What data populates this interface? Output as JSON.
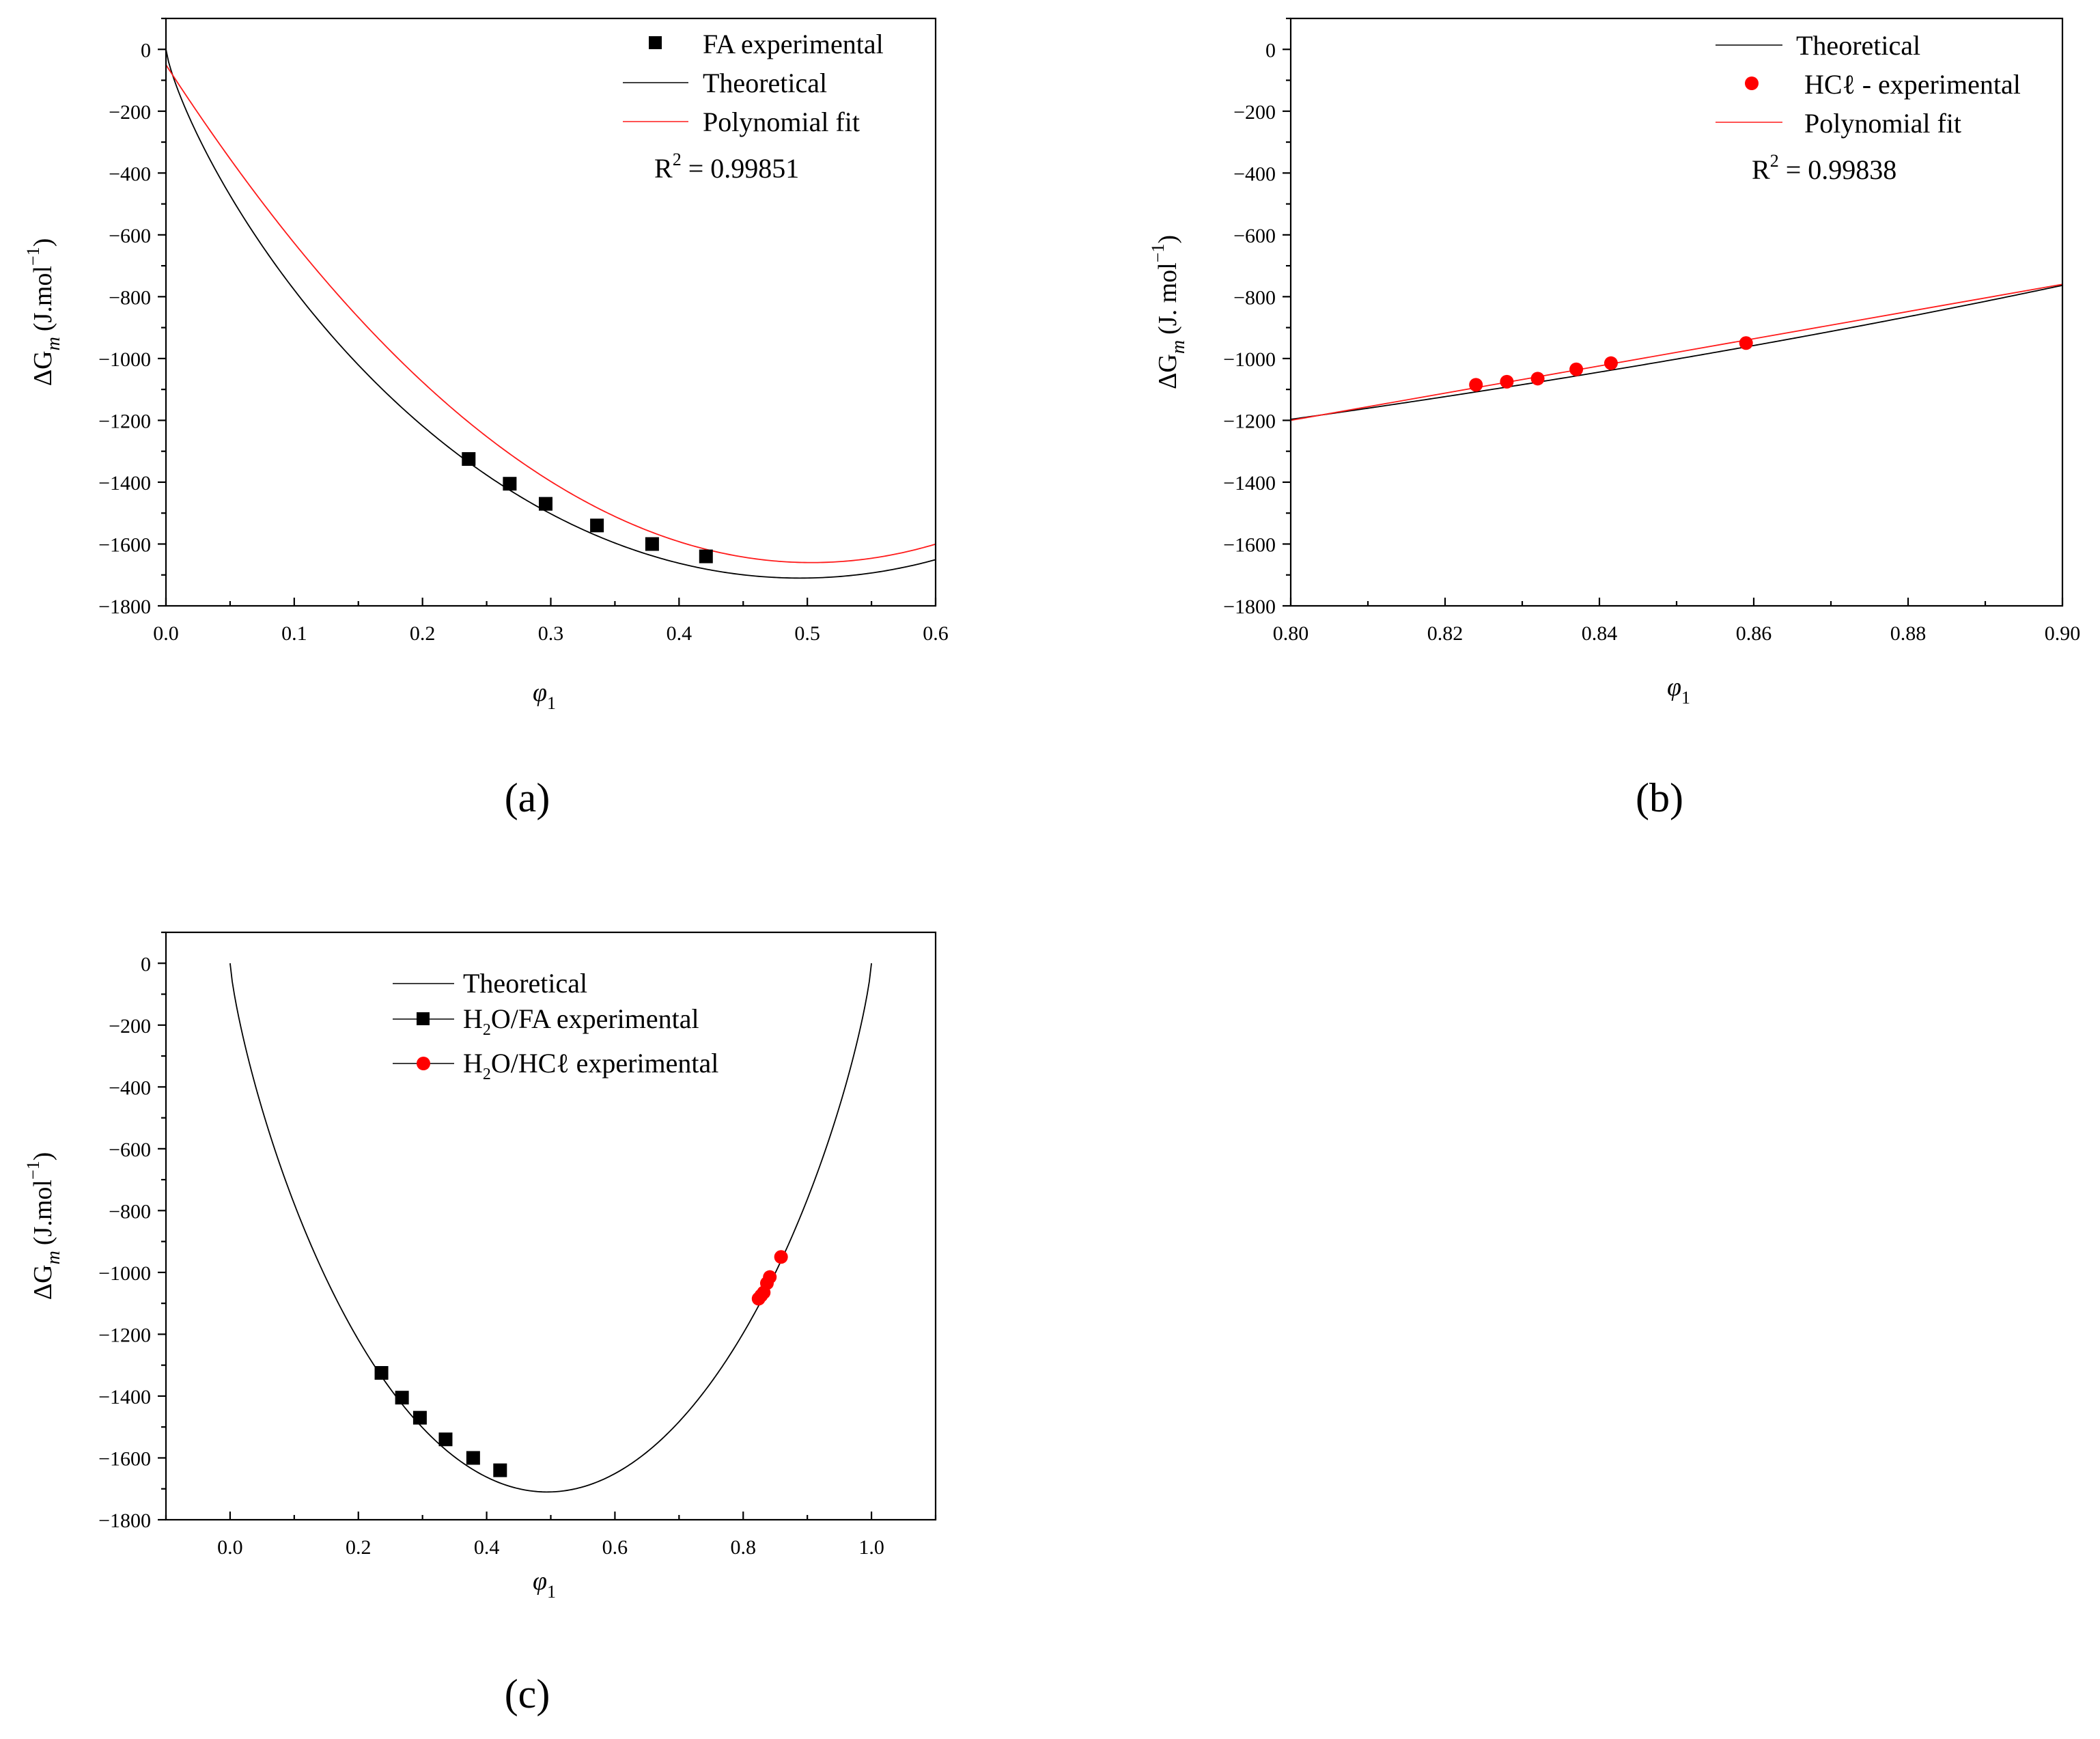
{
  "figure": {
    "panel_labels": [
      "(a)",
      "(b)",
      "(c)"
    ],
    "y_axis_label": "ΔG",
    "y_axis_sub": "m",
    "y_axis_unit_a": "(J.mol",
    "y_axis_unit_b": "(J. mol",
    "y_axis_unit_sup": "−1",
    "y_axis_unit_close": ")",
    "x_axis_label": "φ",
    "x_axis_sub": "1"
  },
  "colors": {
    "theoretical": "#000000",
    "fit": "#ff1a1a",
    "fa_marker": "#000000",
    "hcl_marker": "#ff0000"
  },
  "chart_data": [
    {
      "id": "a",
      "type": "line",
      "panel_label": "(a)",
      "xlim": [
        0.0,
        0.6
      ],
      "ylim": [
        -1800,
        100
      ],
      "xticks": [
        0.0,
        0.1,
        0.2,
        0.3,
        0.4,
        0.5,
        0.6
      ],
      "xtick_labels": [
        "0.0",
        "0.1",
        "0.2",
        "0.3",
        "0.4",
        "0.5",
        "0.6"
      ],
      "yticks": [
        0,
        -200,
        -400,
        -600,
        -800,
        -1000,
        -1200,
        -1400,
        -1600,
        -1800
      ],
      "ytick_labels": [
        "0",
        "−200",
        "−400",
        "−600",
        "−800",
        "−1000",
        "−1200",
        "−1400",
        "−1600",
        "−1800"
      ],
      "xlabel": "φ1",
      "ylabel": "ΔGm (J.mol−1)",
      "r2_prefix": "R",
      "r2_sup": "2",
      "r2_value": " = 0.99851",
      "legend": [
        {
          "label": "FA experimental",
          "kind": "square"
        },
        {
          "label": "Theoretical",
          "kind": "black-line"
        },
        {
          "label": "Polynomial fit",
          "kind": "red-line"
        }
      ],
      "series": [
        {
          "name": "FA experimental",
          "kind": "square",
          "x": [
            0.236,
            0.268,
            0.296,
            0.336,
            0.379,
            0.421
          ],
          "y": [
            -1325,
            -1405,
            -1470,
            -1540,
            -1600,
            -1640
          ]
        },
        {
          "name": "Theoretical",
          "kind": "theoretical",
          "xrange": [
            0.0,
            0.6
          ]
        },
        {
          "name": "Polynomial fit",
          "kind": "fit",
          "coeffs": [
            -50,
            -6400,
            6360
          ],
          "xrange": [
            0.0,
            0.6
          ]
        }
      ]
    },
    {
      "id": "b",
      "type": "line",
      "panel_label": "(b)",
      "xlim": [
        0.8,
        0.9
      ],
      "ylim": [
        -1800,
        100
      ],
      "xticks": [
        0.8,
        0.82,
        0.84,
        0.86,
        0.88,
        0.9
      ],
      "xtick_labels": [
        "0.80",
        "0.82",
        "0.84",
        "0.86",
        "0.88",
        "0.90"
      ],
      "yticks": [
        0,
        -200,
        -400,
        -600,
        -800,
        -1000,
        -1200,
        -1400,
        -1600,
        -1800
      ],
      "ytick_labels": [
        "0",
        "−200",
        "−400",
        "−600",
        "−800",
        "−1000",
        "−1200",
        "−1400",
        "−1600",
        "−1800"
      ],
      "xlabel": "φ1",
      "ylabel": "ΔGm (J. mol−1)",
      "r2_prefix": "R",
      "r2_sup": "2",
      "r2_value": " = 0.99838",
      "legend": [
        {
          "label": "Theoretical",
          "kind": "black-line"
        },
        {
          "label": "HCℓ - experimental",
          "kind": "circle"
        },
        {
          "label": "Polynomial fit",
          "kind": "red-line"
        }
      ],
      "series": [
        {
          "name": "HCℓ - experimental",
          "kind": "circle",
          "x": [
            0.824,
            0.828,
            0.832,
            0.837,
            0.8415,
            0.859
          ],
          "y": [
            -1085,
            -1075,
            -1065,
            -1035,
            -1015,
            -950
          ]
        },
        {
          "name": "Theoretical",
          "kind": "theoretical",
          "xrange": [
            0.8,
            0.9
          ]
        },
        {
          "name": "Polynomial fit",
          "kind": "linear",
          "points": [
            [
              0.8,
              -1200
            ],
            [
              0.9,
              -760
            ]
          ]
        }
      ]
    },
    {
      "id": "c",
      "type": "line",
      "panel_label": "(c)",
      "xlim": [
        -0.1,
        1.1
      ],
      "ylim": [
        -1800,
        100
      ],
      "xticks": [
        0.0,
        0.2,
        0.4,
        0.6,
        0.8,
        1.0
      ],
      "xtick_labels": [
        "0.0",
        "0.2",
        "0.4",
        "0.6",
        "0.8",
        "1.0"
      ],
      "yticks": [
        0,
        -200,
        -400,
        -600,
        -800,
        -1000,
        -1200,
        -1400,
        -1600,
        -1800
      ],
      "ytick_labels": [
        "0",
        "−200",
        "−400",
        "−600",
        "−800",
        "−1000",
        "−1200",
        "−1400",
        "−1600",
        "−1800"
      ],
      "xlabel": "φ1",
      "ylabel": "ΔGm (J.mol−1)",
      "legend": [
        {
          "label": "Theoretical",
          "kind": "black-line"
        },
        {
          "label_prefix": "H",
          "label_sub": "2",
          "label_rest": "O/FA experimental",
          "kind": "square-line"
        },
        {
          "label_prefix": "H",
          "label_sub": "2",
          "label_rest": "O/HCℓ experimental",
          "kind": "circle-line"
        }
      ],
      "series": [
        {
          "name": "Theoretical",
          "kind": "theoretical",
          "xrange": [
            0.0,
            1.0
          ]
        },
        {
          "name": "H2O/FA experimental",
          "kind": "square",
          "x": [
            0.236,
            0.268,
            0.296,
            0.336,
            0.379,
            0.421
          ],
          "y": [
            -1325,
            -1405,
            -1470,
            -1540,
            -1600,
            -1640
          ]
        },
        {
          "name": "H2O/HCℓ experimental",
          "kind": "circle",
          "x": [
            0.824,
            0.828,
            0.832,
            0.837,
            0.8415,
            0.859
          ],
          "y": [
            -1085,
            -1075,
            -1065,
            -1035,
            -1015,
            -950
          ]
        }
      ]
    }
  ]
}
